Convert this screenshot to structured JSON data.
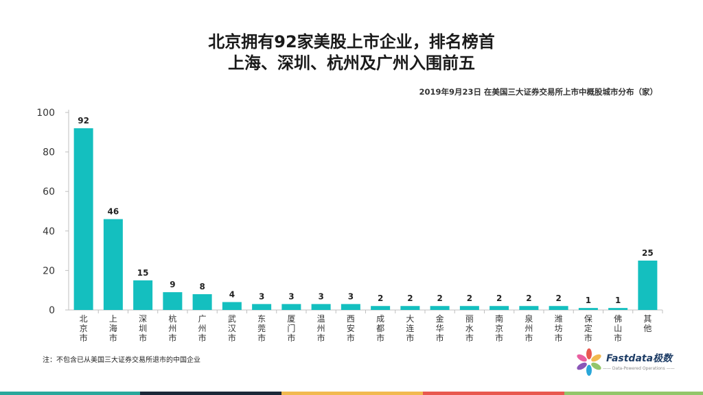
{
  "title_line1": "北京拥有92家美股上市企业，排名榜首",
  "title_line2": "上海、深圳、杭州及广州入围前五",
  "subtitle": "2019年9月23日 在美国三大证券交易所上市中概股城市分布（家）",
  "note": "注：不包含已从美国三大证券交易所退市的中国企业",
  "logo": {
    "name": "Fastdata极数",
    "tagline": "—— Data-Powered Operations ——"
  },
  "colors": {
    "bar": "#14bfbf",
    "footer": [
      "#2aa79b",
      "#1b2838",
      "#f2b950",
      "#e8584f",
      "#93c66a"
    ]
  },
  "chart_data": {
    "type": "bar",
    "categories": [
      "北京市",
      "上海市",
      "深圳市",
      "杭州市",
      "广州市",
      "武汉市",
      "东莞市",
      "厦门市",
      "温州市",
      "西安市",
      "成都市",
      "大连市",
      "金华市",
      "丽水市",
      "南京市",
      "泉州市",
      "潍坊市",
      "保定市",
      "佛山市",
      "其他"
    ],
    "values": [
      92,
      46,
      15,
      9,
      8,
      4,
      3,
      3,
      3,
      3,
      2,
      2,
      2,
      2,
      2,
      2,
      2,
      1,
      1,
      25
    ],
    "title": "北京拥有92家美股上市企业，排名榜首 上海、深圳、杭州及广州入围前五",
    "xlabel": "",
    "ylabel": "",
    "ylim": [
      0,
      100
    ],
    "yticks": [
      0,
      20,
      40,
      60,
      80,
      100
    ],
    "grid": false,
    "data_labels": true
  }
}
